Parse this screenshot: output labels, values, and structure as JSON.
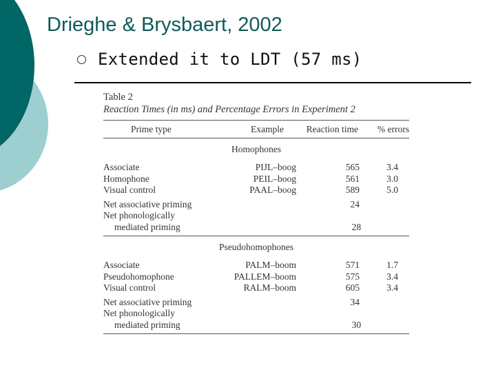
{
  "slide": {
    "title": "Drieghe & Brysbaert, 2002",
    "bullet": "Extended it to LDT (57 ms)"
  },
  "table": {
    "label": "Table 2",
    "caption": "Reaction Times (in ms) and Percentage Errors in Experiment 2",
    "headers": [
      "Prime type",
      "Example",
      "Reaction time",
      "% errors"
    ],
    "sections": [
      {
        "name": "Homophones",
        "rows": [
          {
            "prime": "Associate",
            "example": "PIJL–boog",
            "rt": "565",
            "err": "3.4"
          },
          {
            "prime": "Homophone",
            "example": "PEIL–boog",
            "rt": "561",
            "err": "3.0"
          },
          {
            "prime": "Visual control",
            "example": "PAAL–boog",
            "rt": "589",
            "err": "5.0"
          }
        ],
        "net_assoc_label": "Net associative priming",
        "net_assoc_value": "24",
        "net_phon_label_1": "Net phonologically",
        "net_phon_label_2": "mediated priming",
        "net_phon_value": "28"
      },
      {
        "name": "Pseudohomophones",
        "rows": [
          {
            "prime": "Associate",
            "example": "PALM–boom",
            "rt": "571",
            "err": "1.7"
          },
          {
            "prime": "Pseudohomophone",
            "example": "PALLEM–boom",
            "rt": "575",
            "err": "3.4"
          },
          {
            "prime": "Visual control",
            "example": "RALM–boom",
            "rt": "605",
            "err": "3.4"
          }
        ],
        "net_assoc_label": "Net associative priming",
        "net_assoc_value": "34",
        "net_phon_label_1": "Net phonologically",
        "net_phon_label_2": "mediated priming",
        "net_phon_value": "30"
      }
    ]
  }
}
